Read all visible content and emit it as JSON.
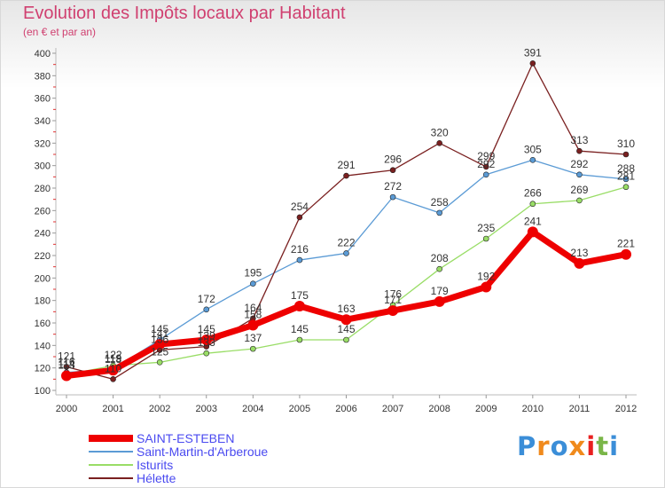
{
  "header": {
    "title": "Evolution des Impôts locaux par Habitant",
    "subtitle": "(en € et par an)"
  },
  "brand": {
    "text": "Proxiti",
    "colors": [
      "#3b8ed8",
      "#f08a1c",
      "#3b8ed8",
      "#f08a1c",
      "#e82020",
      "#7ab648",
      "#3b8ed8"
    ]
  },
  "chart_data": {
    "type": "line",
    "x": [
      "2000",
      "2001",
      "2002",
      "2003",
      "2004",
      "2005",
      "2006",
      "2007",
      "2008",
      "2009",
      "2010",
      "2011",
      "2012"
    ],
    "ylim": [
      100,
      400
    ],
    "yticks": [
      100,
      120,
      140,
      160,
      180,
      200,
      220,
      240,
      260,
      280,
      300,
      320,
      340,
      360,
      380,
      400
    ],
    "grid": false,
    "legend_position": "bottom-left",
    "series": [
      {
        "name": "SAINT-ESTEBEN",
        "color": "#ee0000",
        "width": 7,
        "values": [
          113,
          118,
          141,
          145,
          158,
          175,
          163,
          171,
          179,
          192,
          241,
          213,
          221
        ]
      },
      {
        "name": "Saint-Martin-d'Arberoue",
        "color": "#5b9bd5",
        "width": 1.3,
        "values": [
          116,
          119,
          145,
          172,
          195,
          216,
          222,
          272,
          258,
          292,
          305,
          292,
          288
        ]
      },
      {
        "name": "Isturits",
        "color": "#99dd66",
        "width": 1.3,
        "values": [
          114,
          122,
          125,
          133,
          137,
          145,
          145,
          176,
          208,
          235,
          266,
          269,
          281
        ]
      },
      {
        "name": "Hélette",
        "color": "#7a2020",
        "width": 1.3,
        "values": [
          121,
          110,
          136,
          139,
          164,
          254,
          291,
          296,
          320,
          299,
          391,
          313,
          310
        ]
      }
    ]
  }
}
